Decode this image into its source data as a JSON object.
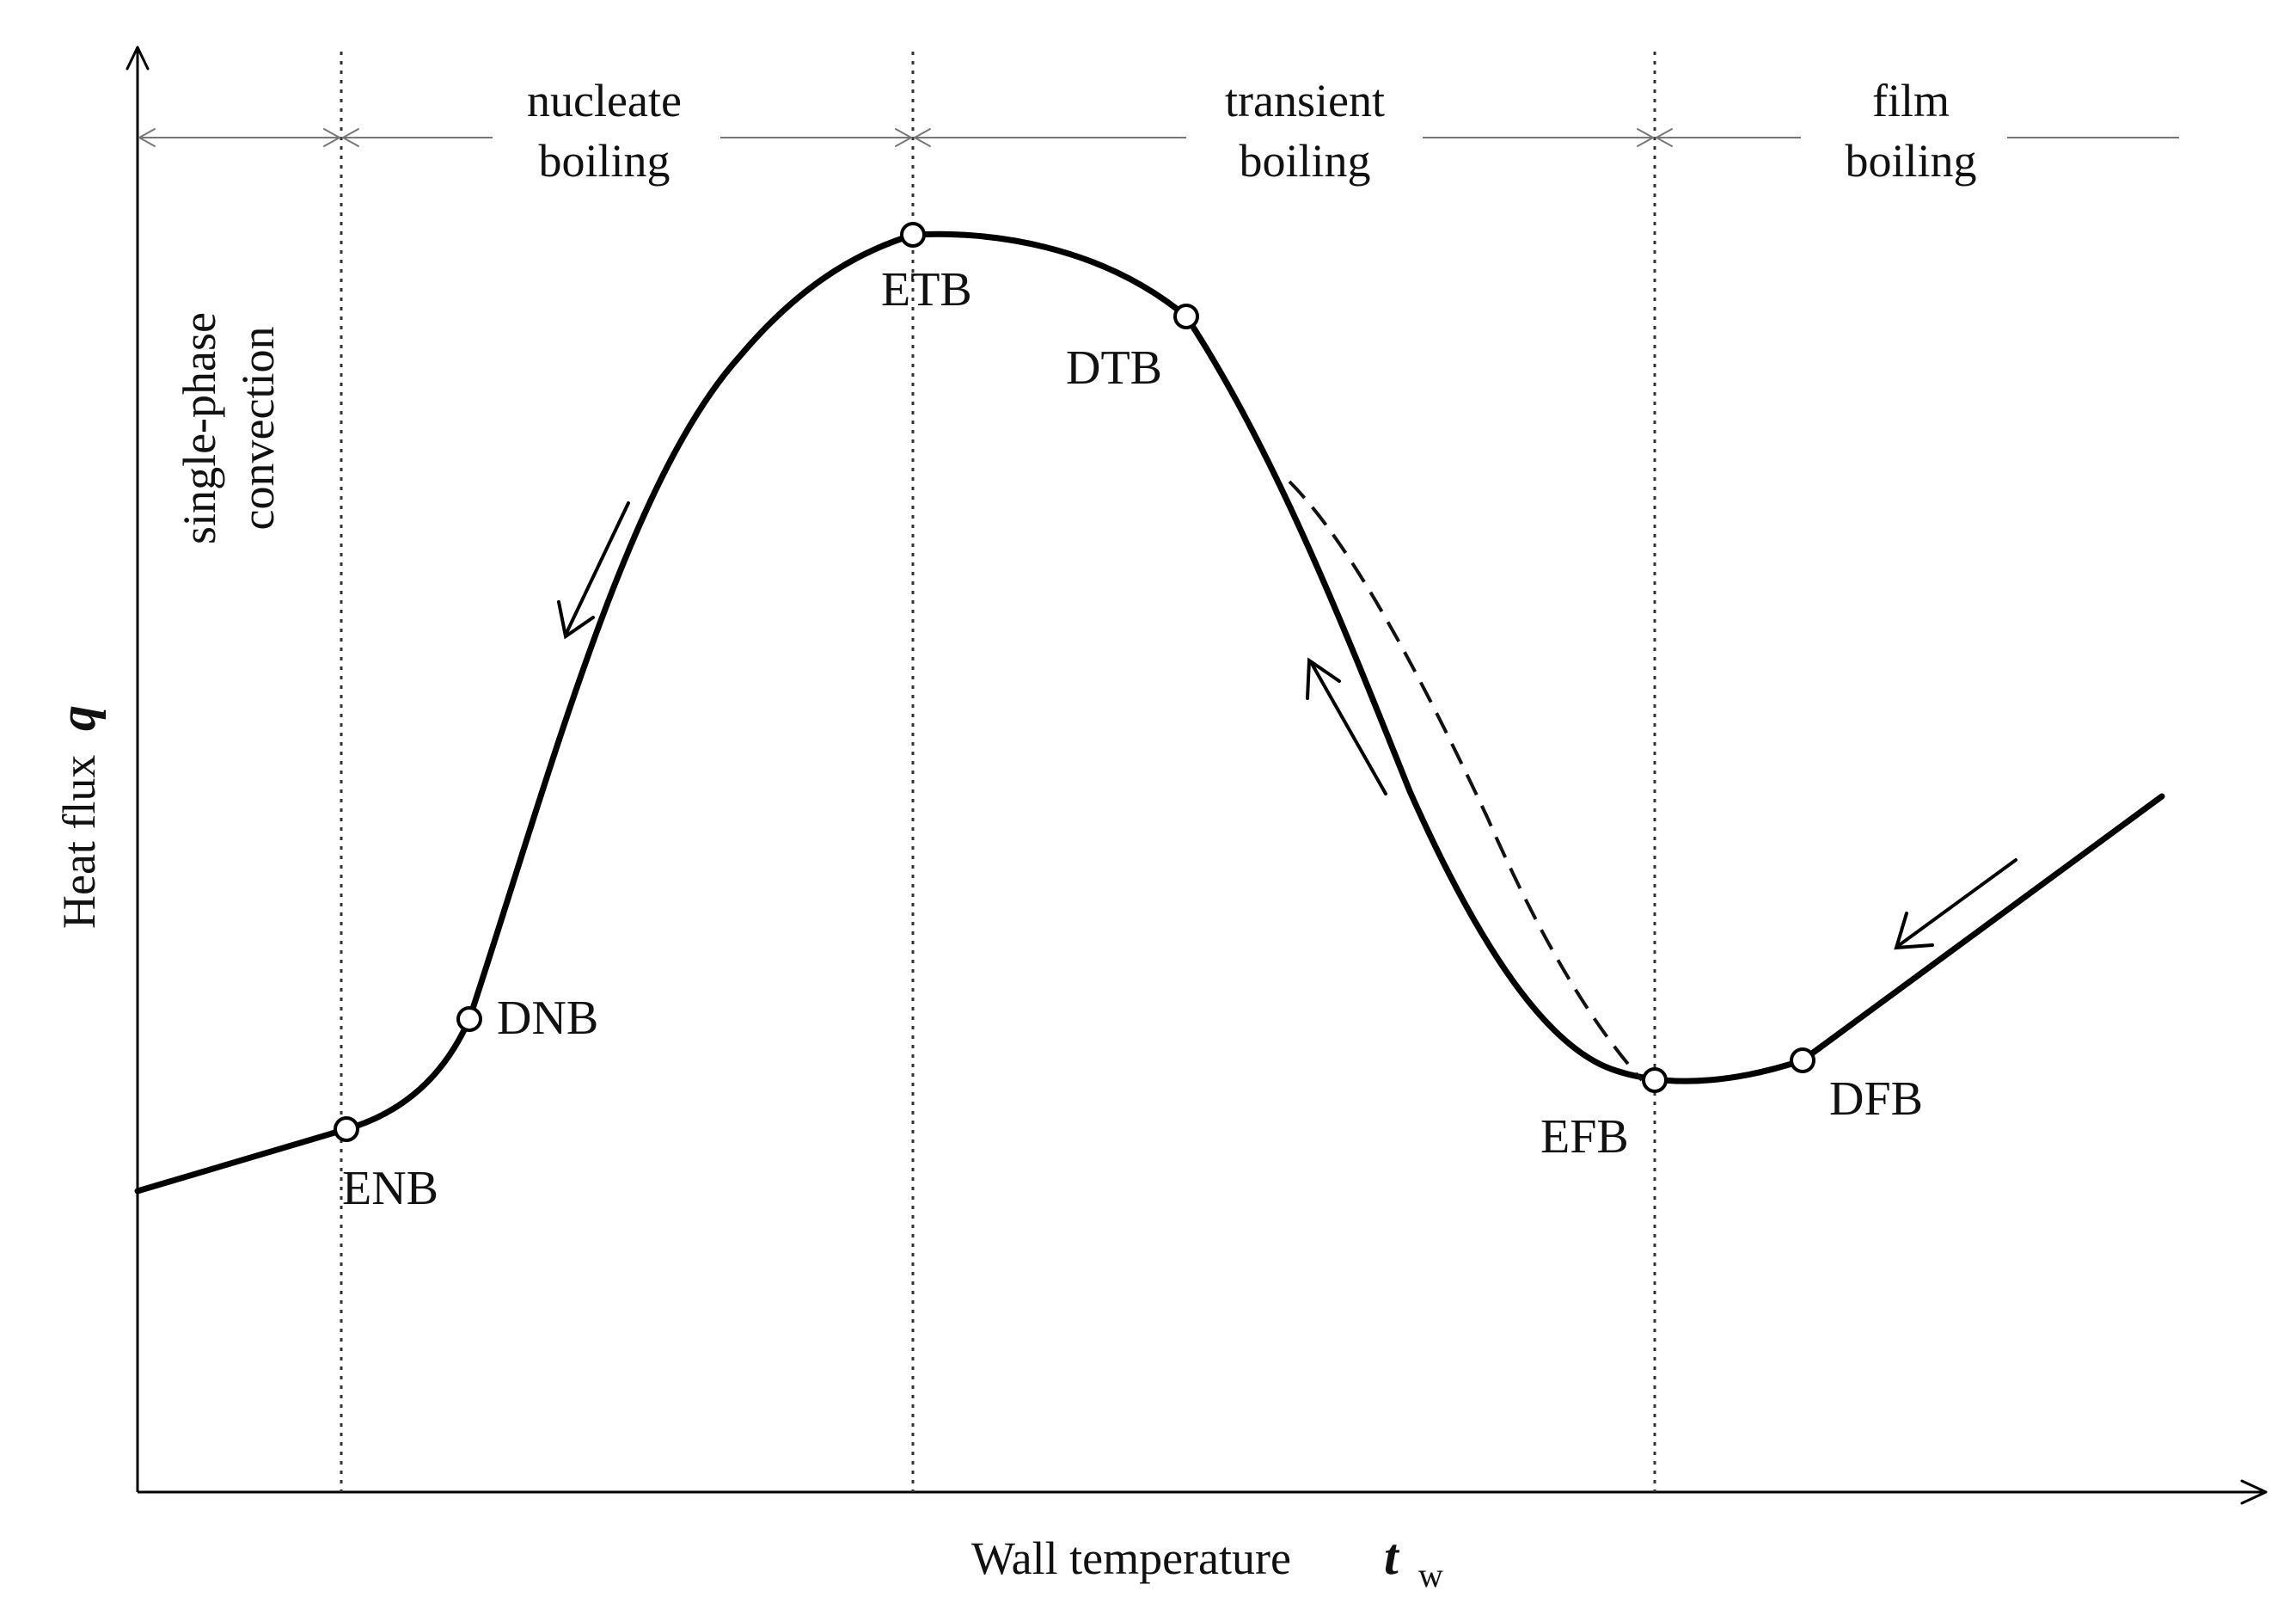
{
  "axes": {
    "y_label": "Heat flux",
    "y_symbol": "q",
    "x_label": "Wall temperature",
    "x_symbol": "t",
    "x_subscript": "w"
  },
  "regions": [
    {
      "id": "single-phase",
      "lines": [
        "single-phase",
        "convection"
      ]
    },
    {
      "id": "nucleate",
      "lines": [
        "nucleate",
        "boiling"
      ]
    },
    {
      "id": "transient",
      "lines": [
        "transient",
        "boiling"
      ]
    },
    {
      "id": "film",
      "lines": [
        "film",
        "boiling"
      ]
    }
  ],
  "points": [
    {
      "id": "enb",
      "label": "ENB"
    },
    {
      "id": "dnb",
      "label": "DNB"
    },
    {
      "id": "etb",
      "label": "ETB"
    },
    {
      "id": "dtb",
      "label": "DTB"
    },
    {
      "id": "efb",
      "label": "EFB"
    },
    {
      "id": "dfb",
      "label": "DFB"
    }
  ]
}
